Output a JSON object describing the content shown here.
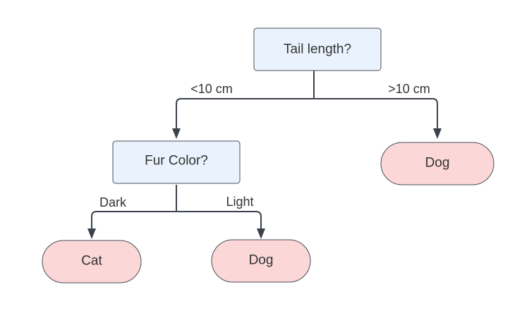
{
  "diagram": {
    "type": "decision-tree",
    "nodes": {
      "root": {
        "label": "Tail length?",
        "kind": "decision"
      },
      "fur": {
        "label": "Fur Color?",
        "kind": "decision"
      },
      "leaf_dog_right": {
        "label": "Dog",
        "kind": "leaf"
      },
      "leaf_cat": {
        "label": "Cat",
        "kind": "leaf"
      },
      "leaf_dog_light": {
        "label": "Dog",
        "kind": "leaf"
      }
    },
    "edges": {
      "root_to_fur": {
        "from": "root",
        "to": "fur",
        "label": "<10 cm"
      },
      "root_to_dog": {
        "from": "root",
        "to": "leaf_dog_right",
        "label": ">10 cm"
      },
      "fur_to_cat": {
        "from": "fur",
        "to": "leaf_cat",
        "label": "Dark"
      },
      "fur_to_dog": {
        "from": "fur",
        "to": "leaf_dog_light",
        "label": "Light"
      }
    },
    "colors": {
      "decision_fill": "#eaf3fd",
      "leaf_fill": "#fbd7d7",
      "stroke": "#4a4f57",
      "connector": "#3c424b",
      "text": "#333333"
    }
  }
}
